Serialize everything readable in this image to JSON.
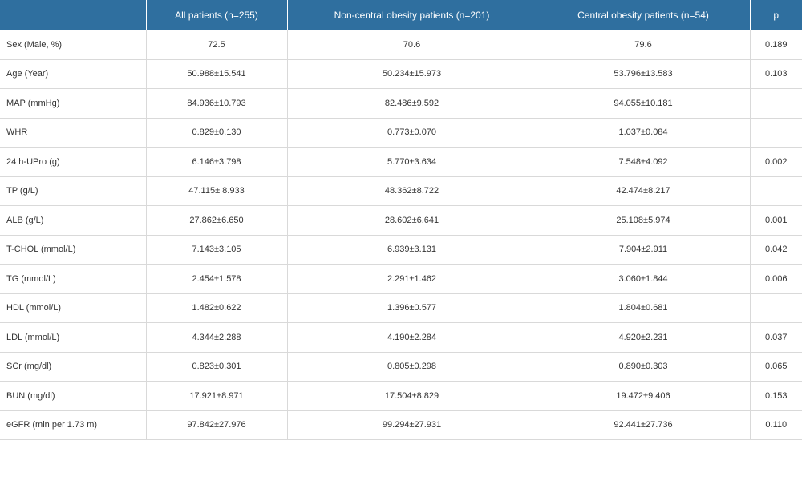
{
  "table": {
    "headers": [
      "",
      "All patients (n=255)",
      "Non-central obesity patients (n=201)",
      "Central obesity patients (n=54)",
      "p"
    ],
    "rows": [
      {
        "label": "Sex (Male, %)",
        "all": "72.5",
        "noncentral": "70.6",
        "central": "79.6",
        "p": "0.189"
      },
      {
        "label": "Age (Year)",
        "all": "50.988±15.541",
        "noncentral": "50.234±15.973",
        "central": "53.796±13.583",
        "p": "0.103"
      },
      {
        "label": "MAP (mmHg)",
        "all": "84.936±10.793",
        "noncentral": "82.486±9.592",
        "central": "94.055±10.181",
        "p": ""
      },
      {
        "label": "WHR",
        "all": "0.829±0.130",
        "noncentral": "0.773±0.070",
        "central": "1.037±0.084",
        "p": ""
      },
      {
        "label": "24 h-UPro (g)",
        "all": "6.146±3.798",
        "noncentral": "5.770±3.634",
        "central": "7.548±4.092",
        "p": "0.002"
      },
      {
        "label": "TP (g/L)",
        "all": "47.115± 8.933",
        "noncentral": "48.362±8.722",
        "central": "42.474±8.217",
        "p": ""
      },
      {
        "label": "ALB (g/L)",
        "all": "27.862±6.650",
        "noncentral": "28.602±6.641",
        "central": "25.108±5.974",
        "p": "0.001"
      },
      {
        "label": "T-CHOL (mmol/L)",
        "all": "7.143±3.105",
        "noncentral": "6.939±3.131",
        "central": "7.904±2.911",
        "p": "0.042"
      },
      {
        "label": "TG (mmol/L)",
        "all": "2.454±1.578",
        "noncentral": "2.291±1.462",
        "central": "3.060±1.844",
        "p": "0.006"
      },
      {
        "label": "HDL (mmol/L)",
        "all": "1.482±0.622",
        "noncentral": "1.396±0.577",
        "central": "1.804±0.681",
        "p": ""
      },
      {
        "label": "LDL (mmol/L)",
        "all": "4.344±2.288",
        "noncentral": "4.190±2.284",
        "central": "4.920±2.231",
        "p": "0.037"
      },
      {
        "label": "SCr (mg/dl)",
        "all": "0.823±0.301",
        "noncentral": "0.805±0.298",
        "central": "0.890±0.303",
        "p": "0.065"
      },
      {
        "label": "BUN (mg/dl)",
        "all": "17.921±8.971",
        "noncentral": "17.504±8.829",
        "central": "19.472±9.406",
        "p": "0.153"
      },
      {
        "label": "eGFR (min per 1.73 m)",
        "all": "97.842±27.976",
        "noncentral": "99.294±27.931",
        "central": "92.441±27.736",
        "p": "0.110"
      }
    ]
  }
}
